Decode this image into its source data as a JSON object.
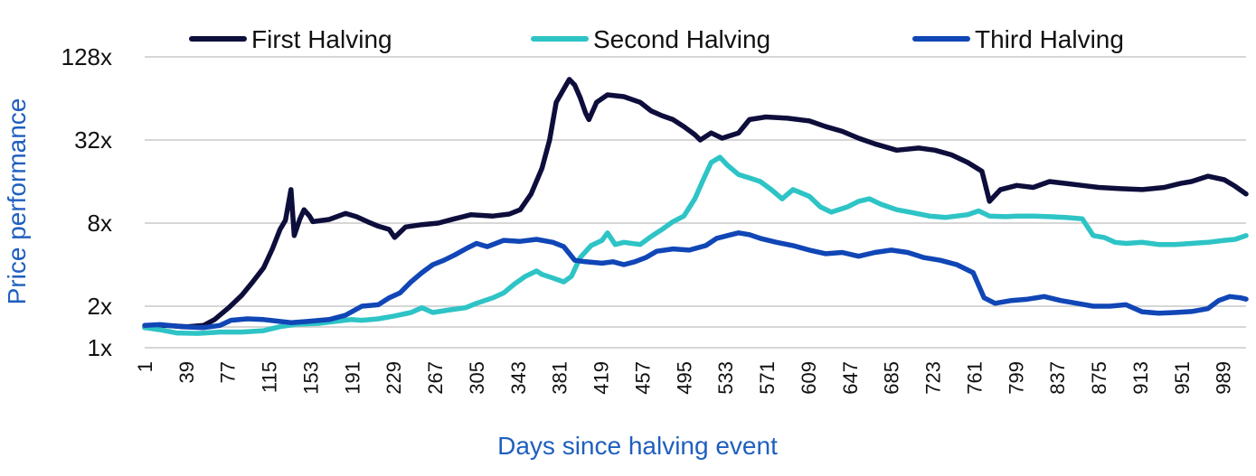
{
  "chart_data": {
    "type": "line",
    "title": "",
    "xlabel": "Days since halving event",
    "ylabel": "Price performance",
    "y_scale": "log2",
    "ylim": [
      1,
      128
    ],
    "xlim": [
      1,
      1010
    ],
    "y_ticks": [
      {
        "value": 1,
        "label": "1x"
      },
      {
        "value": 2,
        "label": "2x"
      },
      {
        "value": 8,
        "label": "8x"
      },
      {
        "value": 32,
        "label": "32x"
      },
      {
        "value": 128,
        "label": "128x"
      }
    ],
    "y_gridlines": [
      1,
      1.4142,
      2,
      8,
      32,
      128
    ],
    "x_ticks": [
      1,
      39,
      77,
      115,
      153,
      191,
      229,
      267,
      305,
      343,
      381,
      419,
      457,
      495,
      533,
      571,
      609,
      647,
      685,
      723,
      761,
      799,
      837,
      875,
      913,
      951,
      989
    ],
    "legend_position": "top",
    "axis_title_color": "#1f5fbf",
    "series": [
      {
        "name": "First Halving",
        "color": "#0e0e3c",
        "points": [
          [
            1,
            1.4
          ],
          [
            20,
            1.45
          ],
          [
            40,
            1.42
          ],
          [
            55,
            1.45
          ],
          [
            65,
            1.6
          ],
          [
            78,
            1.95
          ],
          [
            90,
            2.4
          ],
          [
            100,
            3.0
          ],
          [
            110,
            3.8
          ],
          [
            118,
            5.2
          ],
          [
            125,
            7.2
          ],
          [
            130,
            8.4
          ],
          [
            135,
            14
          ],
          [
            138,
            6.5
          ],
          [
            143,
            8.5
          ],
          [
            147,
            10
          ],
          [
            152,
            9.0
          ],
          [
            155,
            8.2
          ],
          [
            170,
            8.5
          ],
          [
            185,
            9.4
          ],
          [
            195,
            8.9
          ],
          [
            205,
            8.2
          ],
          [
            215,
            7.6
          ],
          [
            225,
            7.2
          ],
          [
            230,
            6.3
          ],
          [
            240,
            7.5
          ],
          [
            255,
            7.8
          ],
          [
            270,
            8.0
          ],
          [
            285,
            8.6
          ],
          [
            300,
            9.2
          ],
          [
            320,
            9.0
          ],
          [
            335,
            9.3
          ],
          [
            345,
            10
          ],
          [
            355,
            13
          ],
          [
            365,
            20
          ],
          [
            372,
            32
          ],
          [
            378,
            60
          ],
          [
            385,
            75
          ],
          [
            390,
            88
          ],
          [
            395,
            80
          ],
          [
            400,
            65
          ],
          [
            405,
            50
          ],
          [
            408,
            45
          ],
          [
            415,
            60
          ],
          [
            425,
            68
          ],
          [
            440,
            66
          ],
          [
            455,
            60
          ],
          [
            465,
            52
          ],
          [
            475,
            48
          ],
          [
            485,
            45
          ],
          [
            495,
            40
          ],
          [
            505,
            35
          ],
          [
            510,
            32
          ],
          [
            520,
            36
          ],
          [
            530,
            33
          ],
          [
            545,
            36
          ],
          [
            555,
            45
          ],
          [
            570,
            47
          ],
          [
            590,
            46
          ],
          [
            610,
            44
          ],
          [
            625,
            40
          ],
          [
            640,
            37
          ],
          [
            655,
            33
          ],
          [
            670,
            30
          ],
          [
            690,
            27
          ],
          [
            710,
            28
          ],
          [
            725,
            27
          ],
          [
            740,
            25
          ],
          [
            755,
            22
          ],
          [
            768,
            19
          ],
          [
            775,
            11.5
          ],
          [
            785,
            14
          ],
          [
            800,
            15
          ],
          [
            815,
            14.5
          ],
          [
            830,
            16
          ],
          [
            845,
            15.5
          ],
          [
            860,
            15
          ],
          [
            875,
            14.5
          ],
          [
            895,
            14.2
          ],
          [
            915,
            14
          ],
          [
            935,
            14.5
          ],
          [
            950,
            15.5
          ],
          [
            960,
            16
          ],
          [
            975,
            17.5
          ],
          [
            990,
            16.5
          ],
          [
            1000,
            14.8
          ],
          [
            1010,
            13
          ]
        ]
      },
      {
        "name": "Second Halving",
        "color": "#2ec4c6",
        "points": [
          [
            1,
            1.4
          ],
          [
            15,
            1.35
          ],
          [
            30,
            1.28
          ],
          [
            50,
            1.27
          ],
          [
            70,
            1.3
          ],
          [
            90,
            1.3
          ],
          [
            110,
            1.33
          ],
          [
            125,
            1.42
          ],
          [
            140,
            1.48
          ],
          [
            160,
            1.5
          ],
          [
            175,
            1.55
          ],
          [
            190,
            1.6
          ],
          [
            200,
            1.58
          ],
          [
            215,
            1.62
          ],
          [
            230,
            1.7
          ],
          [
            245,
            1.8
          ],
          [
            255,
            1.95
          ],
          [
            265,
            1.8
          ],
          [
            280,
            1.88
          ],
          [
            295,
            1.95
          ],
          [
            305,
            2.1
          ],
          [
            320,
            2.3
          ],
          [
            330,
            2.5
          ],
          [
            340,
            2.9
          ],
          [
            350,
            3.3
          ],
          [
            360,
            3.6
          ],
          [
            365,
            3.4
          ],
          [
            375,
            3.2
          ],
          [
            385,
            3.0
          ],
          [
            392,
            3.3
          ],
          [
            400,
            4.5
          ],
          [
            410,
            5.5
          ],
          [
            420,
            6.0
          ],
          [
            425,
            6.8
          ],
          [
            432,
            5.6
          ],
          [
            440,
            5.8
          ],
          [
            455,
            5.6
          ],
          [
            465,
            6.4
          ],
          [
            475,
            7.2
          ],
          [
            485,
            8.2
          ],
          [
            495,
            9.0
          ],
          [
            505,
            12
          ],
          [
            512,
            16
          ],
          [
            520,
            22
          ],
          [
            528,
            24
          ],
          [
            535,
            21
          ],
          [
            545,
            18
          ],
          [
            555,
            17
          ],
          [
            565,
            16
          ],
          [
            575,
            14
          ],
          [
            585,
            12
          ],
          [
            595,
            14
          ],
          [
            610,
            12.5
          ],
          [
            620,
            10.5
          ],
          [
            630,
            9.6
          ],
          [
            645,
            10.5
          ],
          [
            655,
            11.5
          ],
          [
            665,
            12
          ],
          [
            675,
            11
          ],
          [
            690,
            10.0
          ],
          [
            705,
            9.5
          ],
          [
            720,
            9.0
          ],
          [
            735,
            8.8
          ],
          [
            745,
            9.0
          ],
          [
            755,
            9.2
          ],
          [
            765,
            9.8
          ],
          [
            775,
            9.0
          ],
          [
            790,
            8.9
          ],
          [
            800,
            9.0
          ],
          [
            815,
            9.0
          ],
          [
            830,
            8.9
          ],
          [
            845,
            8.8
          ],
          [
            860,
            8.6
          ],
          [
            870,
            6.5
          ],
          [
            880,
            6.3
          ],
          [
            890,
            5.8
          ],
          [
            900,
            5.7
          ],
          [
            915,
            5.8
          ],
          [
            930,
            5.6
          ],
          [
            945,
            5.6
          ],
          [
            960,
            5.7
          ],
          [
            975,
            5.8
          ],
          [
            990,
            6.0
          ],
          [
            1000,
            6.1
          ],
          [
            1010,
            6.5
          ]
        ]
      },
      {
        "name": "Third Halving",
        "color": "#1046b6",
        "points": [
          [
            1,
            1.45
          ],
          [
            15,
            1.47
          ],
          [
            35,
            1.42
          ],
          [
            55,
            1.4
          ],
          [
            70,
            1.45
          ],
          [
            80,
            1.58
          ],
          [
            95,
            1.62
          ],
          [
            110,
            1.6
          ],
          [
            125,
            1.55
          ],
          [
            135,
            1.52
          ],
          [
            150,
            1.55
          ],
          [
            170,
            1.6
          ],
          [
            185,
            1.72
          ],
          [
            200,
            2.0
          ],
          [
            215,
            2.05
          ],
          [
            225,
            2.3
          ],
          [
            235,
            2.5
          ],
          [
            245,
            3.0
          ],
          [
            255,
            3.5
          ],
          [
            265,
            4.0
          ],
          [
            275,
            4.3
          ],
          [
            285,
            4.7
          ],
          [
            295,
            5.2
          ],
          [
            305,
            5.7
          ],
          [
            315,
            5.4
          ],
          [
            330,
            6.0
          ],
          [
            345,
            5.9
          ],
          [
            360,
            6.1
          ],
          [
            375,
            5.8
          ],
          [
            385,
            5.4
          ],
          [
            395,
            4.3
          ],
          [
            405,
            4.2
          ],
          [
            420,
            4.1
          ],
          [
            430,
            4.2
          ],
          [
            440,
            4.0
          ],
          [
            450,
            4.2
          ],
          [
            460,
            4.5
          ],
          [
            470,
            5.0
          ],
          [
            485,
            5.2
          ],
          [
            500,
            5.1
          ],
          [
            515,
            5.5
          ],
          [
            525,
            6.2
          ],
          [
            535,
            6.5
          ],
          [
            545,
            6.8
          ],
          [
            555,
            6.6
          ],
          [
            565,
            6.2
          ],
          [
            580,
            5.8
          ],
          [
            595,
            5.5
          ],
          [
            610,
            5.1
          ],
          [
            625,
            4.8
          ],
          [
            640,
            4.9
          ],
          [
            655,
            4.6
          ],
          [
            670,
            4.9
          ],
          [
            685,
            5.1
          ],
          [
            700,
            4.9
          ],
          [
            715,
            4.5
          ],
          [
            730,
            4.3
          ],
          [
            745,
            4.0
          ],
          [
            760,
            3.5
          ],
          [
            770,
            2.3
          ],
          [
            780,
            2.1
          ],
          [
            795,
            2.2
          ],
          [
            810,
            2.25
          ],
          [
            825,
            2.35
          ],
          [
            840,
            2.2
          ],
          [
            855,
            2.1
          ],
          [
            870,
            2.0
          ],
          [
            885,
            2.0
          ],
          [
            900,
            2.05
          ],
          [
            915,
            1.82
          ],
          [
            930,
            1.78
          ],
          [
            945,
            1.8
          ],
          [
            960,
            1.83
          ],
          [
            975,
            1.92
          ],
          [
            985,
            2.2
          ],
          [
            995,
            2.35
          ],
          [
            1005,
            2.3
          ],
          [
            1010,
            2.25
          ]
        ]
      }
    ]
  }
}
